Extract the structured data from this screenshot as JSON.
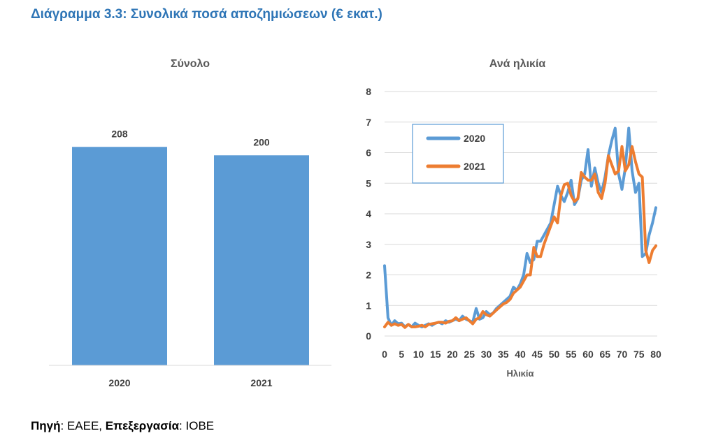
{
  "figure_title": "Διάγραμμα 3.3: Συνολικά ποσά αποζημιώσεων (€ εκατ.)",
  "source": {
    "label1": "Πηγή",
    "value1": ": ΕΑΕΕ, ",
    "label2": "Επεξεργασία",
    "value2": ": ΙΟΒΕ"
  },
  "colors": {
    "s2020": "#5B9BD5",
    "s2021": "#ED7D31",
    "title": "#2E75B6",
    "grid": "#D9D9D9"
  },
  "chart_data": [
    {
      "type": "bar",
      "title": "Σύνολο",
      "categories": [
        "2020",
        "2021"
      ],
      "values": [
        208,
        200
      ],
      "data_labels": [
        "208",
        "200"
      ],
      "ylim": [
        0,
        280
      ],
      "grid": false,
      "xlabel": "",
      "ylabel": ""
    },
    {
      "type": "line",
      "title": "Ανά ηλικία",
      "xlabel": "Ηλικία",
      "ylabel": "",
      "xlim": [
        0,
        80
      ],
      "ylim": [
        0,
        8
      ],
      "x_ticks": [
        "0",
        "5",
        "10",
        "15",
        "20",
        "25",
        "30",
        "35",
        "40",
        "45",
        "50",
        "55",
        "60",
        "65",
        "70",
        "75",
        "80"
      ],
      "y_ticks": [
        "0",
        "1",
        "2",
        "3",
        "4",
        "5",
        "6",
        "7",
        "8"
      ],
      "grid": true,
      "legend_position": "top-left",
      "x": [
        0,
        1,
        2,
        3,
        4,
        5,
        6,
        7,
        8,
        9,
        10,
        11,
        12,
        13,
        14,
        15,
        16,
        17,
        18,
        19,
        20,
        21,
        22,
        23,
        24,
        25,
        26,
        27,
        28,
        29,
        30,
        31,
        32,
        33,
        34,
        35,
        36,
        37,
        38,
        39,
        40,
        41,
        42,
        43,
        44,
        45,
        46,
        47,
        48,
        49,
        50,
        51,
        52,
        53,
        54,
        55,
        56,
        57,
        58,
        59,
        60,
        61,
        62,
        63,
        64,
        65,
        66,
        67,
        68,
        69,
        70,
        71,
        72,
        73,
        74,
        75,
        76,
        77,
        78,
        79,
        80
      ],
      "series": [
        {
          "name": "2020",
          "values": [
            2.3,
            0.6,
            0.35,
            0.5,
            0.4,
            0.42,
            0.3,
            0.38,
            0.3,
            0.42,
            0.35,
            0.3,
            0.35,
            0.4,
            0.35,
            0.42,
            0.45,
            0.4,
            0.5,
            0.45,
            0.5,
            0.55,
            0.5,
            0.65,
            0.55,
            0.5,
            0.45,
            0.9,
            0.55,
            0.6,
            0.8,
            0.7,
            0.75,
            0.9,
            1.0,
            1.1,
            1.2,
            1.3,
            1.6,
            1.5,
            1.7,
            2.0,
            2.7,
            2.4,
            2.5,
            3.1,
            3.1,
            3.3,
            3.5,
            3.7,
            4.3,
            4.9,
            4.6,
            4.4,
            4.7,
            5.1,
            4.3,
            4.5,
            5.1,
            5.3,
            6.1,
            4.9,
            5.5,
            5.0,
            4.7,
            5.2,
            5.9,
            6.4,
            6.8,
            5.3,
            4.8,
            5.5,
            6.8,
            5.4,
            4.7,
            5.0,
            2.6,
            2.7,
            3.3,
            3.7,
            4.2
          ]
        },
        {
          "name": "2021",
          "values": [
            0.3,
            0.45,
            0.35,
            0.4,
            0.35,
            0.38,
            0.28,
            0.38,
            0.3,
            0.3,
            0.32,
            0.35,
            0.3,
            0.38,
            0.4,
            0.42,
            0.45,
            0.45,
            0.42,
            0.48,
            0.5,
            0.6,
            0.5,
            0.55,
            0.6,
            0.5,
            0.4,
            0.55,
            0.6,
            0.8,
            0.7,
            0.65,
            0.75,
            0.85,
            0.95,
            1.05,
            1.1,
            1.2,
            1.4,
            1.5,
            1.6,
            1.8,
            2.0,
            2.0,
            2.9,
            2.6,
            2.6,
            3.0,
            3.3,
            3.6,
            3.9,
            3.7,
            4.6,
            4.95,
            5.0,
            4.6,
            4.4,
            4.5,
            5.35,
            5.2,
            5.1,
            5.1,
            5.3,
            4.7,
            4.5,
            5.0,
            5.9,
            5.6,
            5.3,
            5.4,
            6.2,
            5.4,
            5.6,
            6.2,
            5.7,
            5.3,
            5.2,
            2.8,
            2.4,
            2.8,
            2.95
          ]
        }
      ]
    }
  ]
}
